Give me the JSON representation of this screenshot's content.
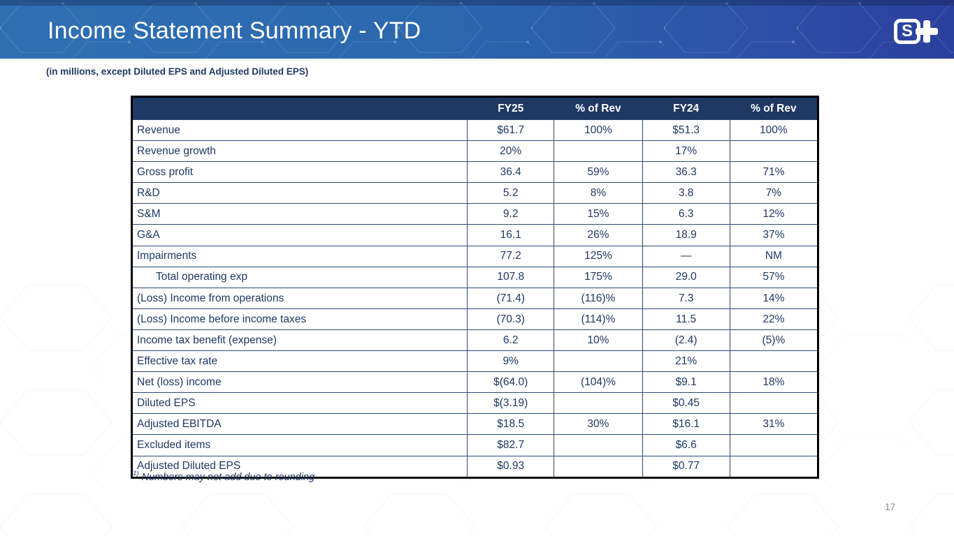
{
  "slide": {
    "title": "Income Statement Summary - YTD",
    "subtitle": "(in millions, except Diluted EPS and Adjusted Diluted EPS)",
    "page_number": "17",
    "logo_letter": "S"
  },
  "colors": {
    "header_gradient_left": "#2e6fb2",
    "header_gradient_right": "#2b3f9e",
    "table_header_bg": "#1f3864",
    "table_text": "#1f3864",
    "grid_line": "#2c4a78",
    "outer_border": "#000000",
    "page_number_gray": "#8c8c8c"
  },
  "table": {
    "headers": [
      "",
      "FY25",
      "% of Rev",
      "FY24",
      "% of Rev"
    ],
    "rows": [
      {
        "label": "Revenue",
        "indent": false,
        "fy25": "$61.7",
        "pct25": "100%",
        "fy24": "$51.3",
        "pct24": "100%"
      },
      {
        "label": "Revenue growth",
        "indent": false,
        "fy25": "20%",
        "pct25": "",
        "fy24": "17%",
        "pct24": ""
      },
      {
        "label": "Gross profit",
        "indent": false,
        "fy25": "36.4",
        "pct25": "59%",
        "fy24": "36.3",
        "pct24": "71%"
      },
      {
        "label": "R&D",
        "indent": false,
        "fy25": "5.2",
        "pct25": "8%",
        "fy24": "3.8",
        "pct24": "7%"
      },
      {
        "label": "S&M",
        "indent": false,
        "fy25": "9.2",
        "pct25": "15%",
        "fy24": "6.3",
        "pct24": "12%"
      },
      {
        "label": "G&A",
        "indent": false,
        "fy25": "16.1",
        "pct25": "26%",
        "fy24": "18.9",
        "pct24": "37%"
      },
      {
        "label": "Impairments",
        "indent": false,
        "fy25": "77.2",
        "pct25": "125%",
        "fy24": "—",
        "pct24": "NM"
      },
      {
        "label": "Total operating exp",
        "indent": true,
        "fy25": "107.8",
        "pct25": "175%",
        "fy24": "29.0",
        "pct24": "57%"
      },
      {
        "label": "(Loss) Income from operations",
        "indent": false,
        "fy25": "(71.4)",
        "pct25": "(116)%",
        "fy24": "7.3",
        "pct24": "14%"
      },
      {
        "label": "(Loss) Income before income taxes",
        "indent": false,
        "fy25": "(70.3)",
        "pct25": "(114)%",
        "fy24": "11.5",
        "pct24": "22%"
      },
      {
        "label": "Income tax benefit (expense)",
        "indent": false,
        "fy25": "6.2",
        "pct25": "10%",
        "fy24": "(2.4)",
        "pct24": "(5)%"
      },
      {
        "label": "Effective tax rate",
        "indent": false,
        "fy25": "9%",
        "pct25": "",
        "fy24": "21%",
        "pct24": ""
      },
      {
        "label": "Net (loss) income",
        "indent": false,
        "fy25": "$(64.0)",
        "pct25": "(104)%",
        "fy24": "$9.1",
        "pct24": "18%"
      },
      {
        "label": "Diluted EPS",
        "indent": false,
        "fy25": "$(3.19)",
        "pct25": "",
        "fy24": "$0.45",
        "pct24": ""
      },
      {
        "label": "Adjusted EBITDA",
        "indent": false,
        "fy25": "$18.5",
        "pct25": "30%",
        "fy24": "$16.1",
        "pct24": "31%"
      },
      {
        "label": "Excluded items",
        "indent": false,
        "fy25": "$82.7",
        "pct25": "",
        "fy24": "$6.6",
        "pct24": ""
      },
      {
        "label": "Adjusted Diluted EPS",
        "indent": false,
        "fy25": "$0.93",
        "pct25": "",
        "fy24": "$0.77",
        "pct24": ""
      }
    ]
  },
  "footnote": {
    "superscript": "(1)",
    "text": "Numbers may not add due to rounding"
  }
}
